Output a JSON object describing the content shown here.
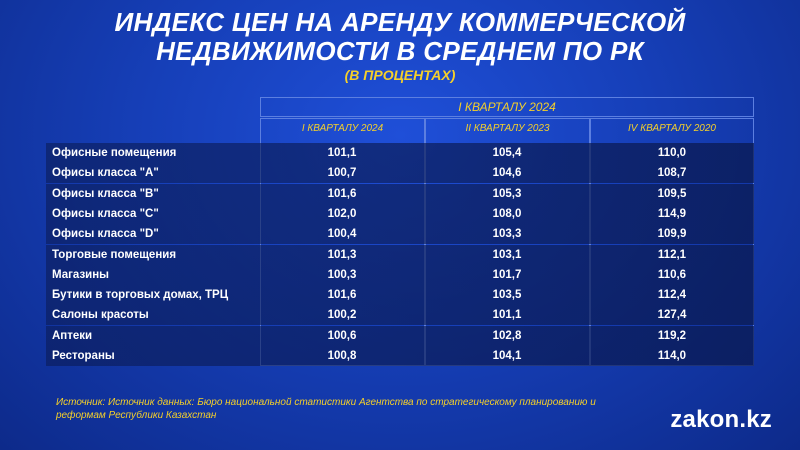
{
  "title_line1": "ИНДЕКС ЦЕН НА АРЕНДУ КОММЕРЧЕСКОЙ",
  "title_line2": "НЕДВИЖИМОСТИ В СРЕДНЕМ ПО РК",
  "subtitle": "(В ПРОЦЕНТАХ)",
  "group_header": "I КВАРТАЛУ 2024",
  "columns": [
    "I КВАРТАЛУ 2024",
    "II КВАРТАЛУ 2023",
    "IV КВАРТАЛУ 2020"
  ],
  "rows": [
    {
      "label": "Офисные помещения",
      "v1": "101,1",
      "v2": "105,4",
      "v3": "110,0"
    },
    {
      "label": "Офисы класса \"A\"",
      "v1": "100,7",
      "v2": "104,6",
      "v3": "108,7"
    },
    {
      "label": "Офисы класса \"B\"",
      "v1": "101,6",
      "v2": "105,3",
      "v3": "109,5"
    },
    {
      "label": "Офисы класса \"C\"",
      "v1": "102,0",
      "v2": "108,0",
      "v3": "114,9"
    },
    {
      "label": "Офисы класса \"D\"",
      "v1": "100,4",
      "v2": "103,3",
      "v3": "109,9"
    },
    {
      "label": "Торговые помещения",
      "v1": "101,3",
      "v2": "103,1",
      "v3": "112,1"
    },
    {
      "label": "Магазины",
      "v1": "100,3",
      "v2": "101,7",
      "v3": "110,6"
    },
    {
      "label": "Бутики в торговых домах, ТРЦ",
      "v1": "101,6",
      "v2": "103,5",
      "v3": "112,4"
    },
    {
      "label": "Салоны красоты",
      "v1": "100,2",
      "v2": "101,1",
      "v3": "127,4"
    },
    {
      "label": "Аптеки",
      "v1": "100,6",
      "v2": "102,8",
      "v3": "119,2"
    },
    {
      "label": "Рестораны",
      "v1": "100,8",
      "v2": "104,1",
      "v3": "114,0"
    }
  ],
  "source_line1": "Источник: Источник данных: Бюро национальной статистики Агентства по стратегическому планированию и",
  "source_line2": "реформам Республики Казахстан",
  "logo": "zakon.kz",
  "colors": {
    "accent": "#f5d02a",
    "background": "#1a45c4",
    "row_fill": "#0f2466"
  }
}
